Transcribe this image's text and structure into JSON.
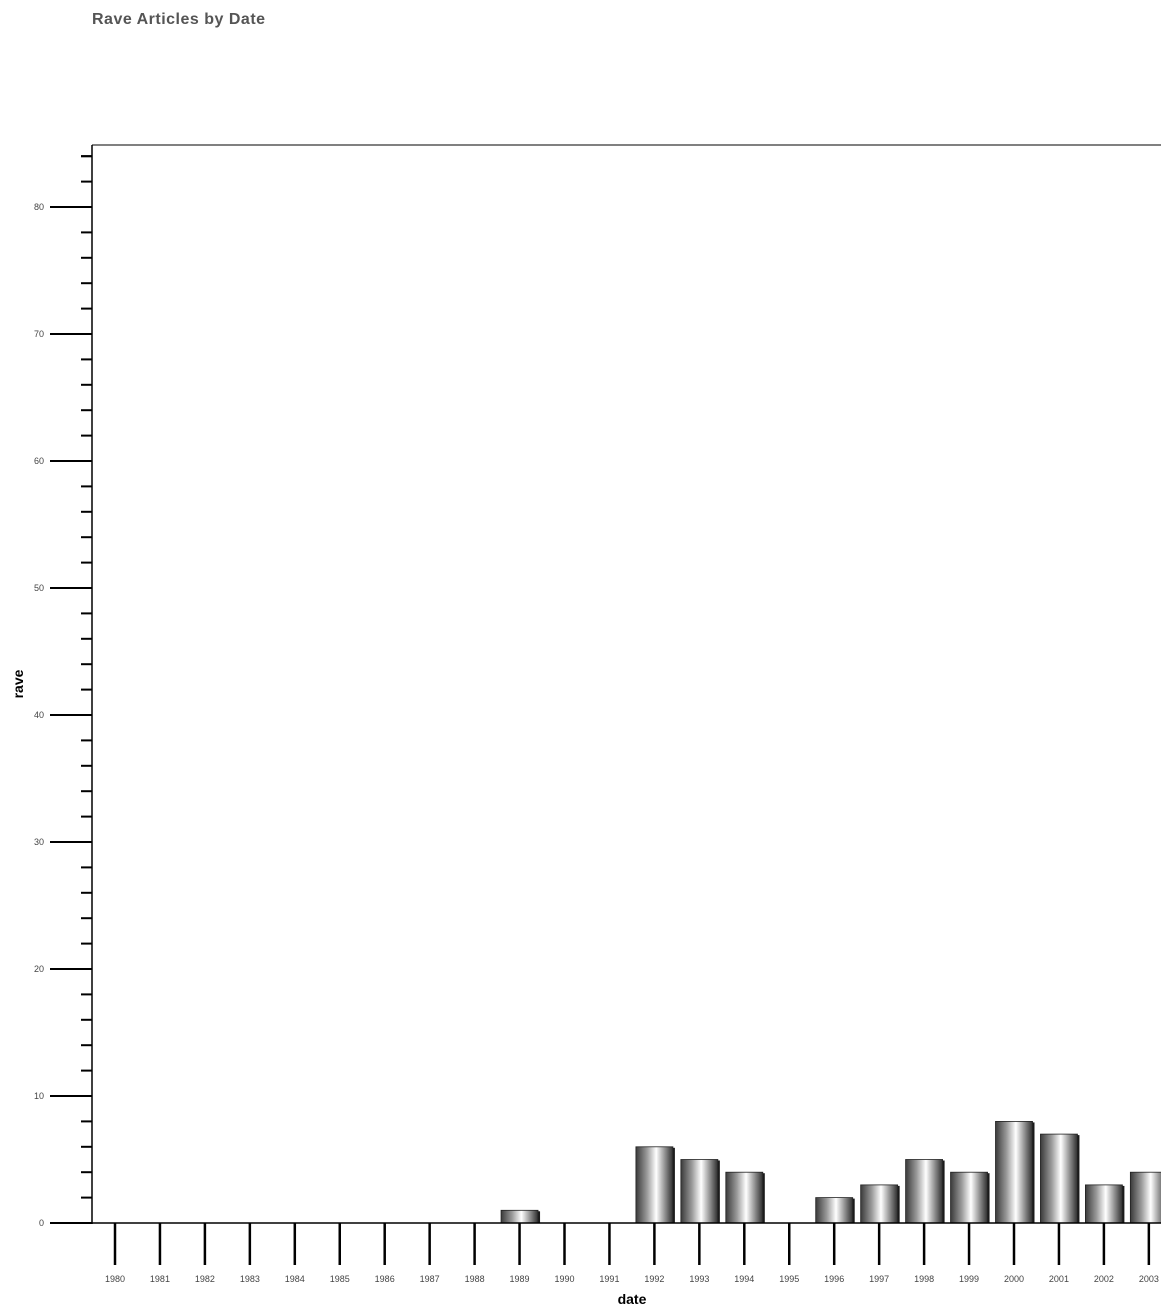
{
  "chart_data": {
    "type": "bar",
    "title": "Rave Articles by Date",
    "xlabel": "date",
    "ylabel": "rave",
    "categories": [
      "1980",
      "1981",
      "1982",
      "1983",
      "1984",
      "1985",
      "1986",
      "1987",
      "1988",
      "1989",
      "1990",
      "1991",
      "1992",
      "1993",
      "1994",
      "1995",
      "1996",
      "1997",
      "1998",
      "1999",
      "2000",
      "2001",
      "2002",
      "2003"
    ],
    "values": [
      0,
      0,
      0,
      0,
      0,
      0,
      0,
      0,
      0,
      1,
      0,
      0,
      6,
      5,
      4,
      0,
      2,
      3,
      5,
      4,
      8,
      7,
      3,
      4
    ],
    "ylim": [
      0,
      85
    ],
    "y_major_ticks": [
      0,
      10,
      20,
      30,
      40,
      50,
      60,
      70,
      80
    ],
    "y_minor_step": 2,
    "grid": false,
    "legend": "none",
    "bar_style": "gray cylindrical gradient"
  }
}
